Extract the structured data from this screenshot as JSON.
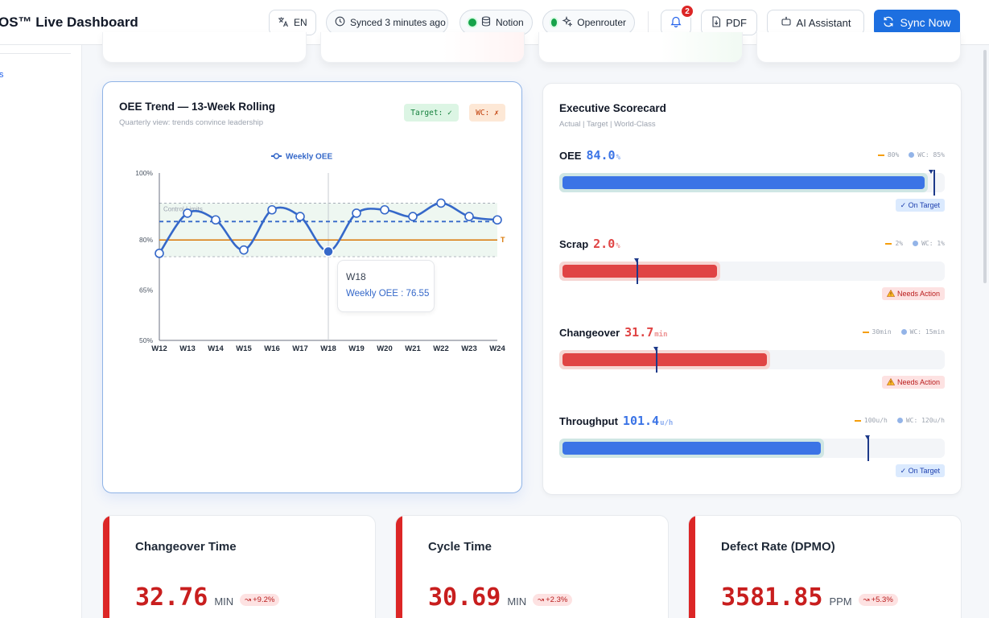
{
  "header": {
    "title": "OS™ Live Dashboard",
    "language_label": "EN",
    "sync_status": "Synced 3 minutes ago",
    "integrations": [
      {
        "label": "Notion",
        "status_color": "#16a34a"
      },
      {
        "label": "Openrouter",
        "status_color": "#16a34a"
      }
    ],
    "notification_count": "2",
    "pdf_label": "PDF",
    "ai_label": "AI Assistant",
    "sync_button_label": "Sync Now",
    "accent_color": "#1d6fe0"
  },
  "sidebar": {
    "fragment_text": "s"
  },
  "oee_card": {
    "title": "OEE Trend — 13-Week Rolling",
    "subtitle": "Quarterly view: trends convince leadership",
    "target_badge": "Target: ✓",
    "wc_badge": "WC: ✗",
    "tooltip": {
      "week": "W18",
      "text": "Weekly OEE : 76.55"
    }
  },
  "chart_data": {
    "type": "line",
    "legend": "Weekly OEE",
    "legend_position": "top-center",
    "x": [
      "W12",
      "W13",
      "W14",
      "W15",
      "W16",
      "W17",
      "W18",
      "W19",
      "W20",
      "W21",
      "W22",
      "W23",
      "W24"
    ],
    "series": [
      {
        "name": "Weekly OEE",
        "values": [
          76,
          88,
          86,
          77,
          89,
          87,
          76.55,
          88,
          89,
          87,
          91,
          87,
          86
        ],
        "color": "#3568c9"
      }
    ],
    "ylim": [
      50,
      100
    ],
    "yticks": [
      {
        "value": 100,
        "label": "100%"
      },
      {
        "value": 80,
        "label": "80%"
      },
      {
        "value": 65,
        "label": "65%"
      },
      {
        "value": 50,
        "label": "50%"
      }
    ],
    "mean_line": 85.5,
    "target_line": 80,
    "target_line_label": "T",
    "control_limits": {
      "upper": 91,
      "lower": 75,
      "label": "Control Limits"
    },
    "highlight_index": 6,
    "grid": false
  },
  "scorecard": {
    "title": "Executive Scorecard",
    "subtitle": "Actual | Target | World-Class",
    "metrics": [
      {
        "label": "OEE",
        "value": "84.0",
        "unit": "%",
        "target_text": "80%",
        "wc_text": "WC: 85%",
        "status": "✓ On Target",
        "status_icon": "check-icon",
        "good": true,
        "fill_fraction": 0.94,
        "target_fraction": 0.97,
        "wc_fraction": 0.965
      },
      {
        "label": "Scrap",
        "value": "2.0",
        "unit": "%",
        "target_text": "2%",
        "wc_text": "WC: 1%",
        "status": "Needs Action",
        "status_icon": "warning-icon",
        "good": false,
        "fill_fraction": 0.4,
        "target_fraction": 0.2,
        "wc_fraction": 0.2
      },
      {
        "label": "Changeover",
        "value": "31.7",
        "unit": "min",
        "target_text": "30min",
        "wc_text": "WC: 15min",
        "status": "Needs Action",
        "status_icon": "warning-icon",
        "good": false,
        "fill_fraction": 0.53,
        "target_fraction": 0.25,
        "wc_fraction": 0.25
      },
      {
        "label": "Throughput",
        "value": "101.4",
        "unit": "u/h",
        "target_text": "100u/h",
        "wc_text": "WC: 120u/h",
        "status": "✓ On Target",
        "status_icon": "check-icon",
        "good": true,
        "fill_fraction": 0.67,
        "target_fraction": 0.8,
        "wc_fraction": 0.8
      }
    ],
    "good_color": "#3b74e6",
    "bad_color": "#e04444"
  },
  "kpis": [
    {
      "title": "Changeover Time",
      "value": "32.76",
      "unit": "MIN",
      "change": "+9.2%"
    },
    {
      "title": "Cycle Time",
      "value": "30.69",
      "unit": "MIN",
      "change": "+2.3%"
    },
    {
      "title": "Defect Rate (DPMO)",
      "value": "3581.85",
      "unit": "PPM",
      "change": "+5.3%"
    }
  ]
}
